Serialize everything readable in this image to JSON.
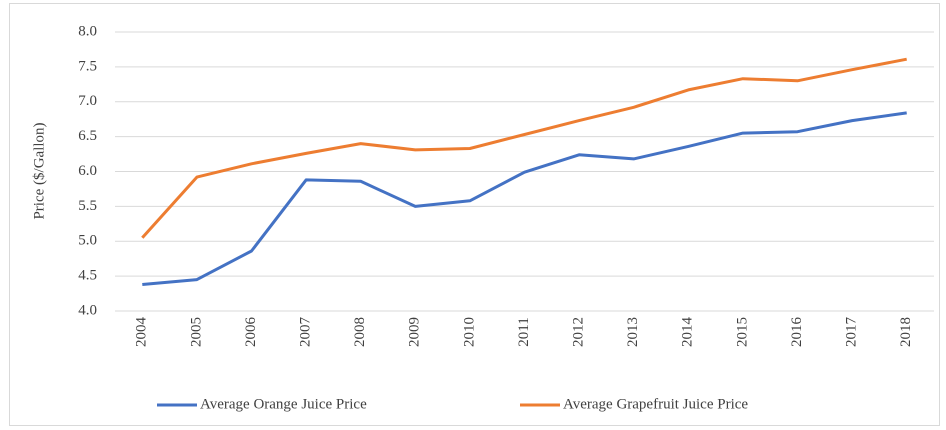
{
  "chart_data": {
    "type": "line",
    "y_label": "Price ($/Gallon)",
    "categories": [
      "2004",
      "2005",
      "2006",
      "2007",
      "2008",
      "2009",
      "2010",
      "2011",
      "2012",
      "2013",
      "2014",
      "2015",
      "2016",
      "2017",
      "2018"
    ],
    "series": [
      {
        "name": "Average Orange Juice Price",
        "color": "#4472c4",
        "values": [
          4.38,
          4.45,
          4.86,
          5.88,
          5.86,
          5.5,
          5.58,
          5.99,
          6.24,
          6.18,
          6.36,
          6.55,
          6.57,
          6.73,
          6.84
        ]
      },
      {
        "name": "Average Grapefruit Juice Price",
        "color": "#ed7d31",
        "values": [
          5.05,
          5.92,
          6.11,
          6.26,
          6.4,
          6.31,
          6.33,
          6.53,
          6.73,
          6.92,
          7.17,
          7.33,
          7.3,
          7.46,
          7.61
        ]
      }
    ],
    "ylim": [
      4,
      8
    ],
    "yticks": [
      {
        "value": 4,
        "label": "4.0"
      },
      4.5,
      {
        "value": 5,
        "label": "5.0"
      },
      5.5,
      {
        "value": 6,
        "label": "6.0"
      },
      6.5,
      {
        "value": 7,
        "label": "7.0"
      },
      7.5,
      {
        "value": 8,
        "label": "8.0"
      }
    ],
    "grid": true,
    "legend": "bottom"
  }
}
